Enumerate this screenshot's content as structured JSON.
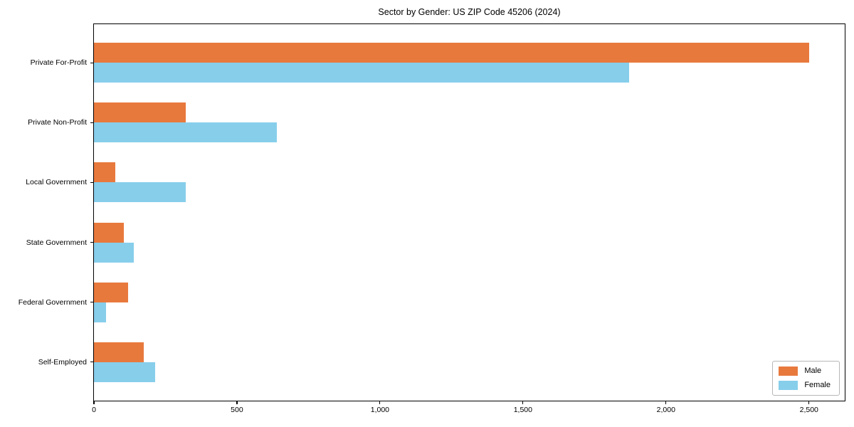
{
  "title": "Sector by Gender: US ZIP Code 45206 (2024)",
  "chart_data": {
    "type": "bar",
    "orientation": "horizontal",
    "title": "Sector by Gender: US ZIP Code 45206 (2024)",
    "xlabel": "",
    "ylabel": "",
    "categories": [
      "Private For-Profit",
      "Private Non-Profit",
      "Local Government",
      "State Government",
      "Federal Government",
      "Self-Employed"
    ],
    "series": [
      {
        "name": "Male",
        "color": "#E8793D",
        "values": [
          2500,
          320,
          75,
          105,
          120,
          175
        ]
      },
      {
        "name": "Female",
        "color": "#87CEEB",
        "values": [
          1870,
          640,
          320,
          140,
          42,
          215
        ]
      }
    ],
    "xlim": [
      0,
      2625
    ],
    "x_ticks": [
      0,
      500,
      1000,
      1500,
      2000,
      2500
    ],
    "x_tick_labels": [
      "0",
      "500",
      "1,000",
      "1,500",
      "2,000",
      "2,500"
    ],
    "grid": false,
    "legend": {
      "position": "lower right",
      "entries": [
        "Male",
        "Female"
      ]
    }
  }
}
